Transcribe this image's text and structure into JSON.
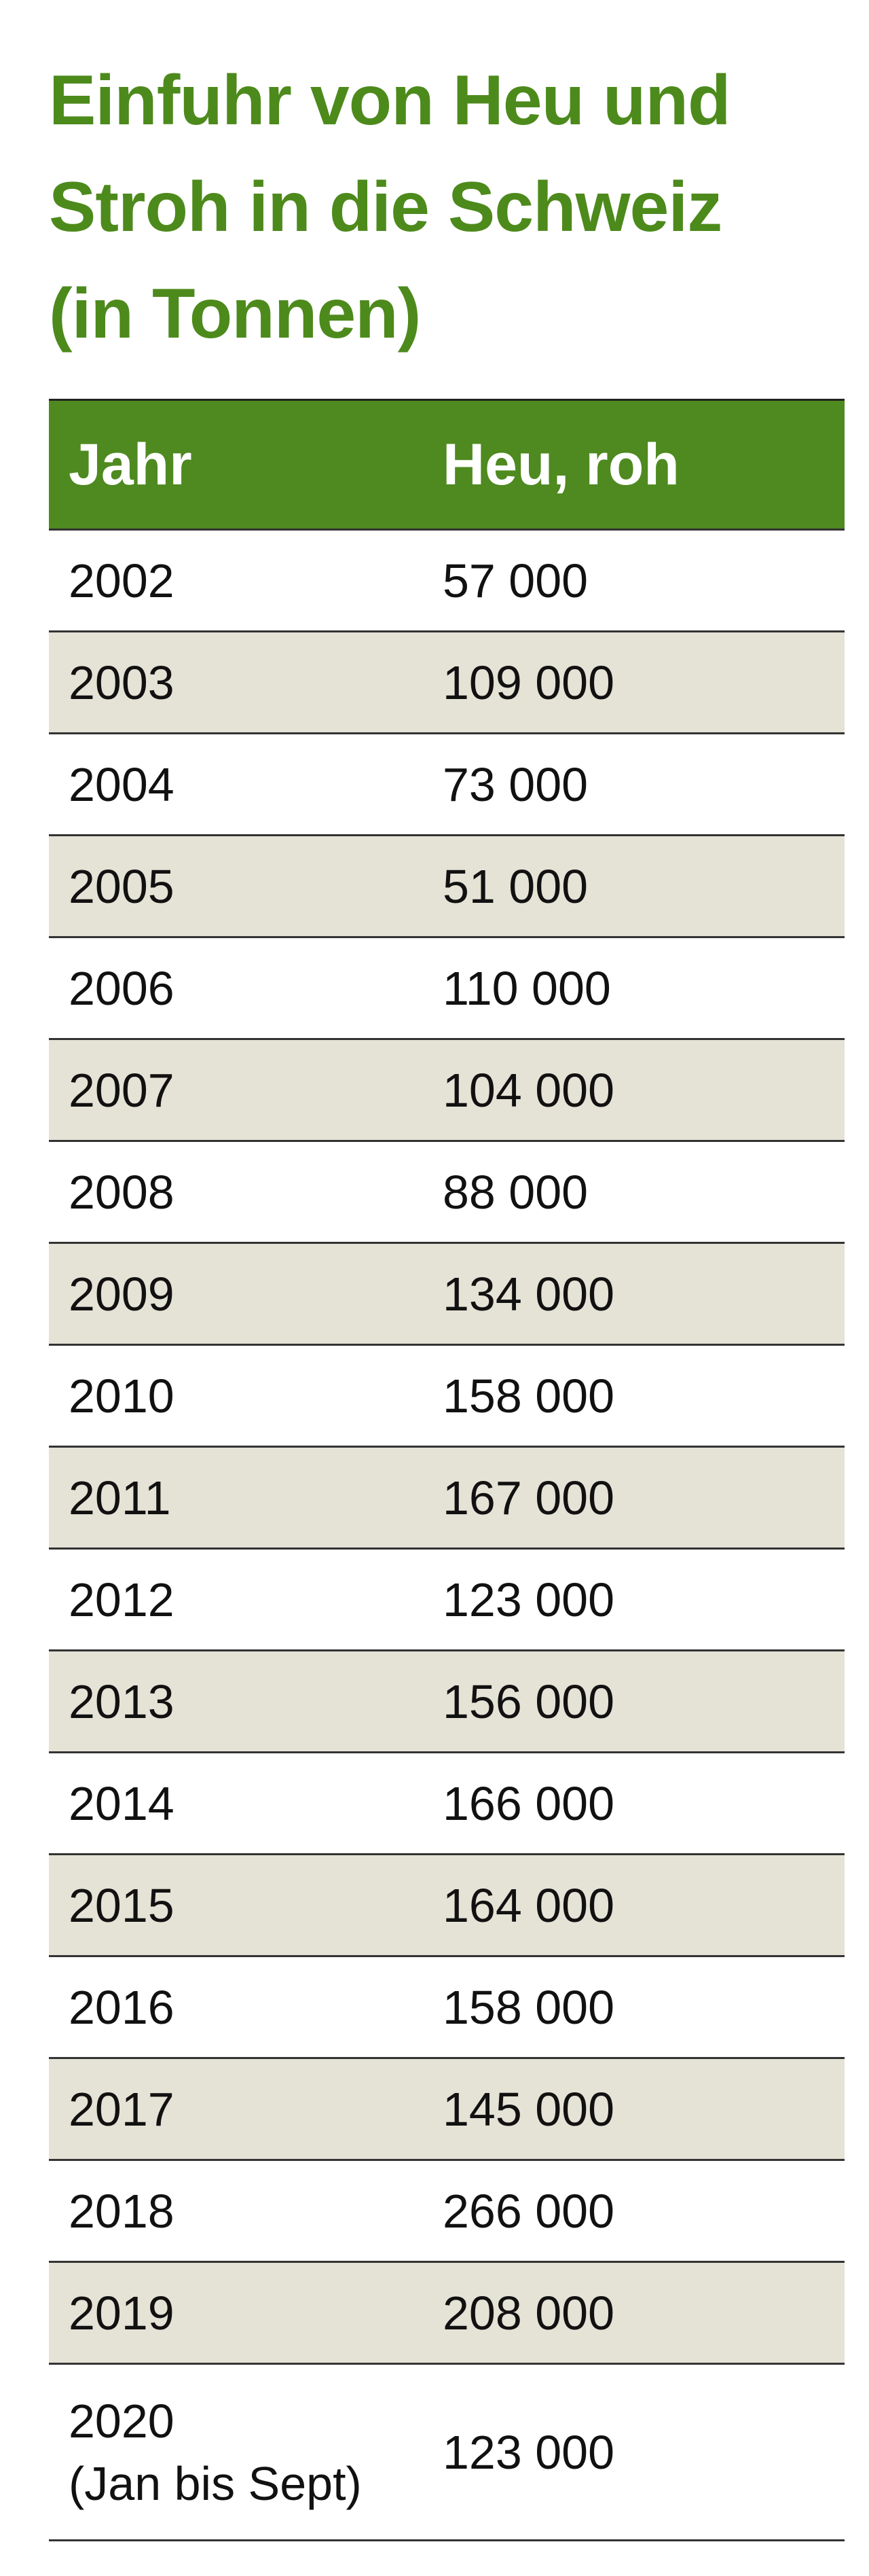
{
  "title_lines": [
    "Einfuhr von Heu und",
    "Stroh in die Schweiz",
    "(in Tonnen)"
  ],
  "table": {
    "header": [
      "Jahr",
      "Heu, roh"
    ],
    "rows": [
      [
        "2002",
        "57 000"
      ],
      [
        "2003",
        "109 000"
      ],
      [
        "2004",
        "73 000"
      ],
      [
        "2005",
        "51 000"
      ],
      [
        "2006",
        "110 000"
      ],
      [
        "2007",
        "104 000"
      ],
      [
        "2008",
        "88 000"
      ],
      [
        "2009",
        "134 000"
      ],
      [
        "2010",
        "158 000"
      ],
      [
        "2011",
        "167 000"
      ],
      [
        "2012",
        "123 000"
      ],
      [
        "2013",
        "156 000"
      ],
      [
        "2014",
        "166 000"
      ],
      [
        "2015",
        "164 000"
      ],
      [
        "2016",
        "158 000"
      ],
      [
        "2017",
        "145 000"
      ],
      [
        "2018",
        "266 000"
      ],
      [
        "2019",
        "208 000"
      ],
      [
        "2020\n(Jan bis Sept)",
        "123 000"
      ]
    ]
  }
}
